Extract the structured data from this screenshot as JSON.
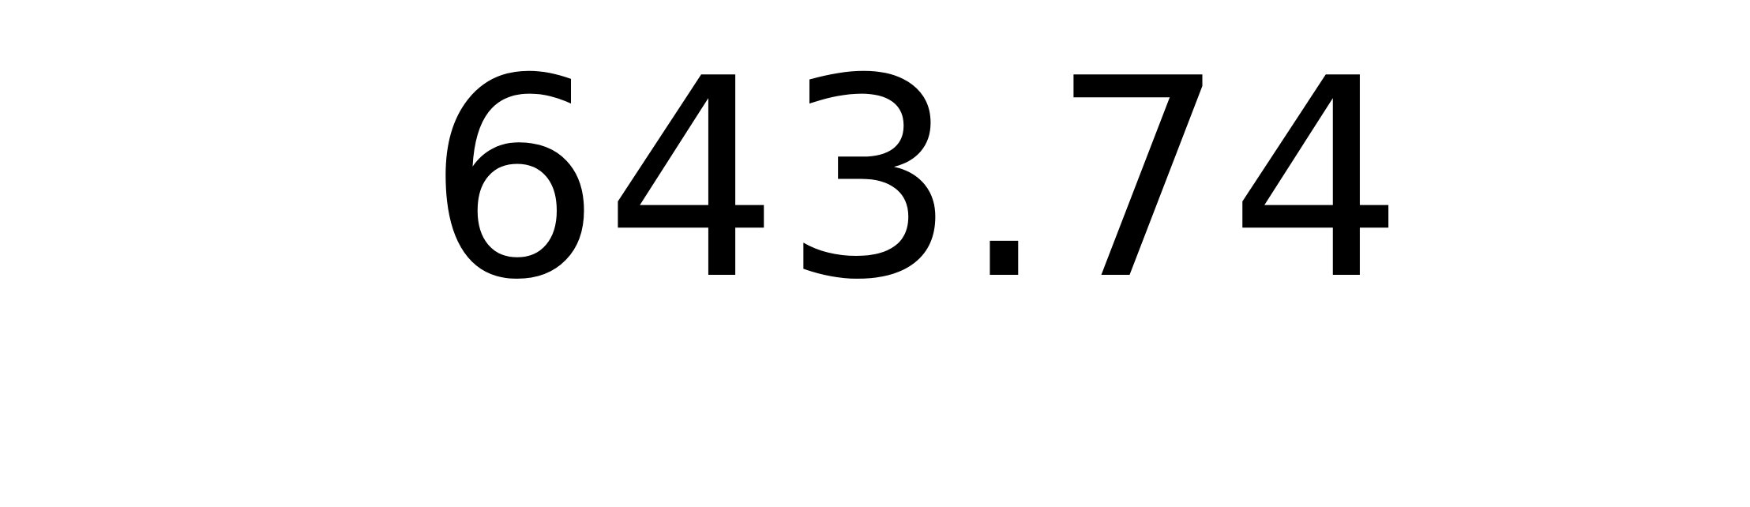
{
  "display": {
    "value": "643.74"
  },
  "colors": {
    "background": "#ffffff",
    "text": "#000000"
  }
}
